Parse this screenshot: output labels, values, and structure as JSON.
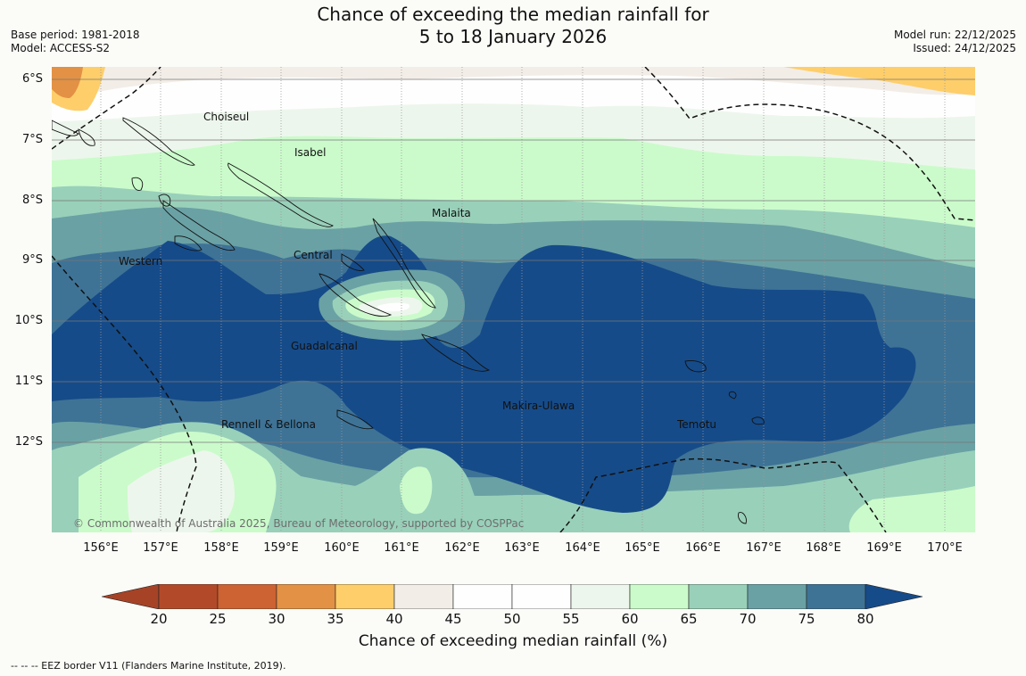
{
  "title": {
    "line1": "Chance of exceeding the median rainfall for",
    "line2": "5 to 18 January 2026"
  },
  "meta_left": {
    "base_period": "Base period: 1981-2018",
    "model": "Model: ACCESS-S2"
  },
  "meta_right": {
    "model_run": "Model run: 22/12/2025",
    "issued": "Issued: 24/12/2025"
  },
  "latitude_labels": [
    "6°S",
    "7°S",
    "8°S",
    "9°S",
    "10°S",
    "11°S",
    "12°S"
  ],
  "longitude_labels": [
    "156°E",
    "157°E",
    "158°E",
    "159°E",
    "160°E",
    "161°E",
    "162°E",
    "163°E",
    "164°E",
    "165°E",
    "166°E",
    "167°E",
    "168°E",
    "169°E",
    "170°E"
  ],
  "provinces": [
    "Choiseul",
    "Isabel",
    "Malaita",
    "Western",
    "Central",
    "Guadalcanal",
    "Makira-Ulawa",
    "Rennell & Bellona",
    "Temotu"
  ],
  "copyright": "© Commonwealth of Australia 2025, Bureau of Meteorology, supported by COSPPac",
  "colorbar": {
    "ticks": [
      "20",
      "25",
      "30",
      "35",
      "40",
      "45",
      "50",
      "55",
      "60",
      "65",
      "70",
      "75",
      "80"
    ],
    "colors": [
      "#a64327",
      "#b24a2a",
      "#cd6232",
      "#e39144",
      "#fece6a",
      "#f3ede7",
      "#fefefe",
      "#fefefe",
      "#edf6ec",
      "#cbfbcb",
      "#99d0ba",
      "#6aa1a4",
      "#3e7396",
      "#164b89"
    ],
    "label": "Chance of exceeding median rainfall (%)"
  },
  "footnote": "--  --  -- EEZ border V11 (Flanders Marine Institute, 2019)."
}
